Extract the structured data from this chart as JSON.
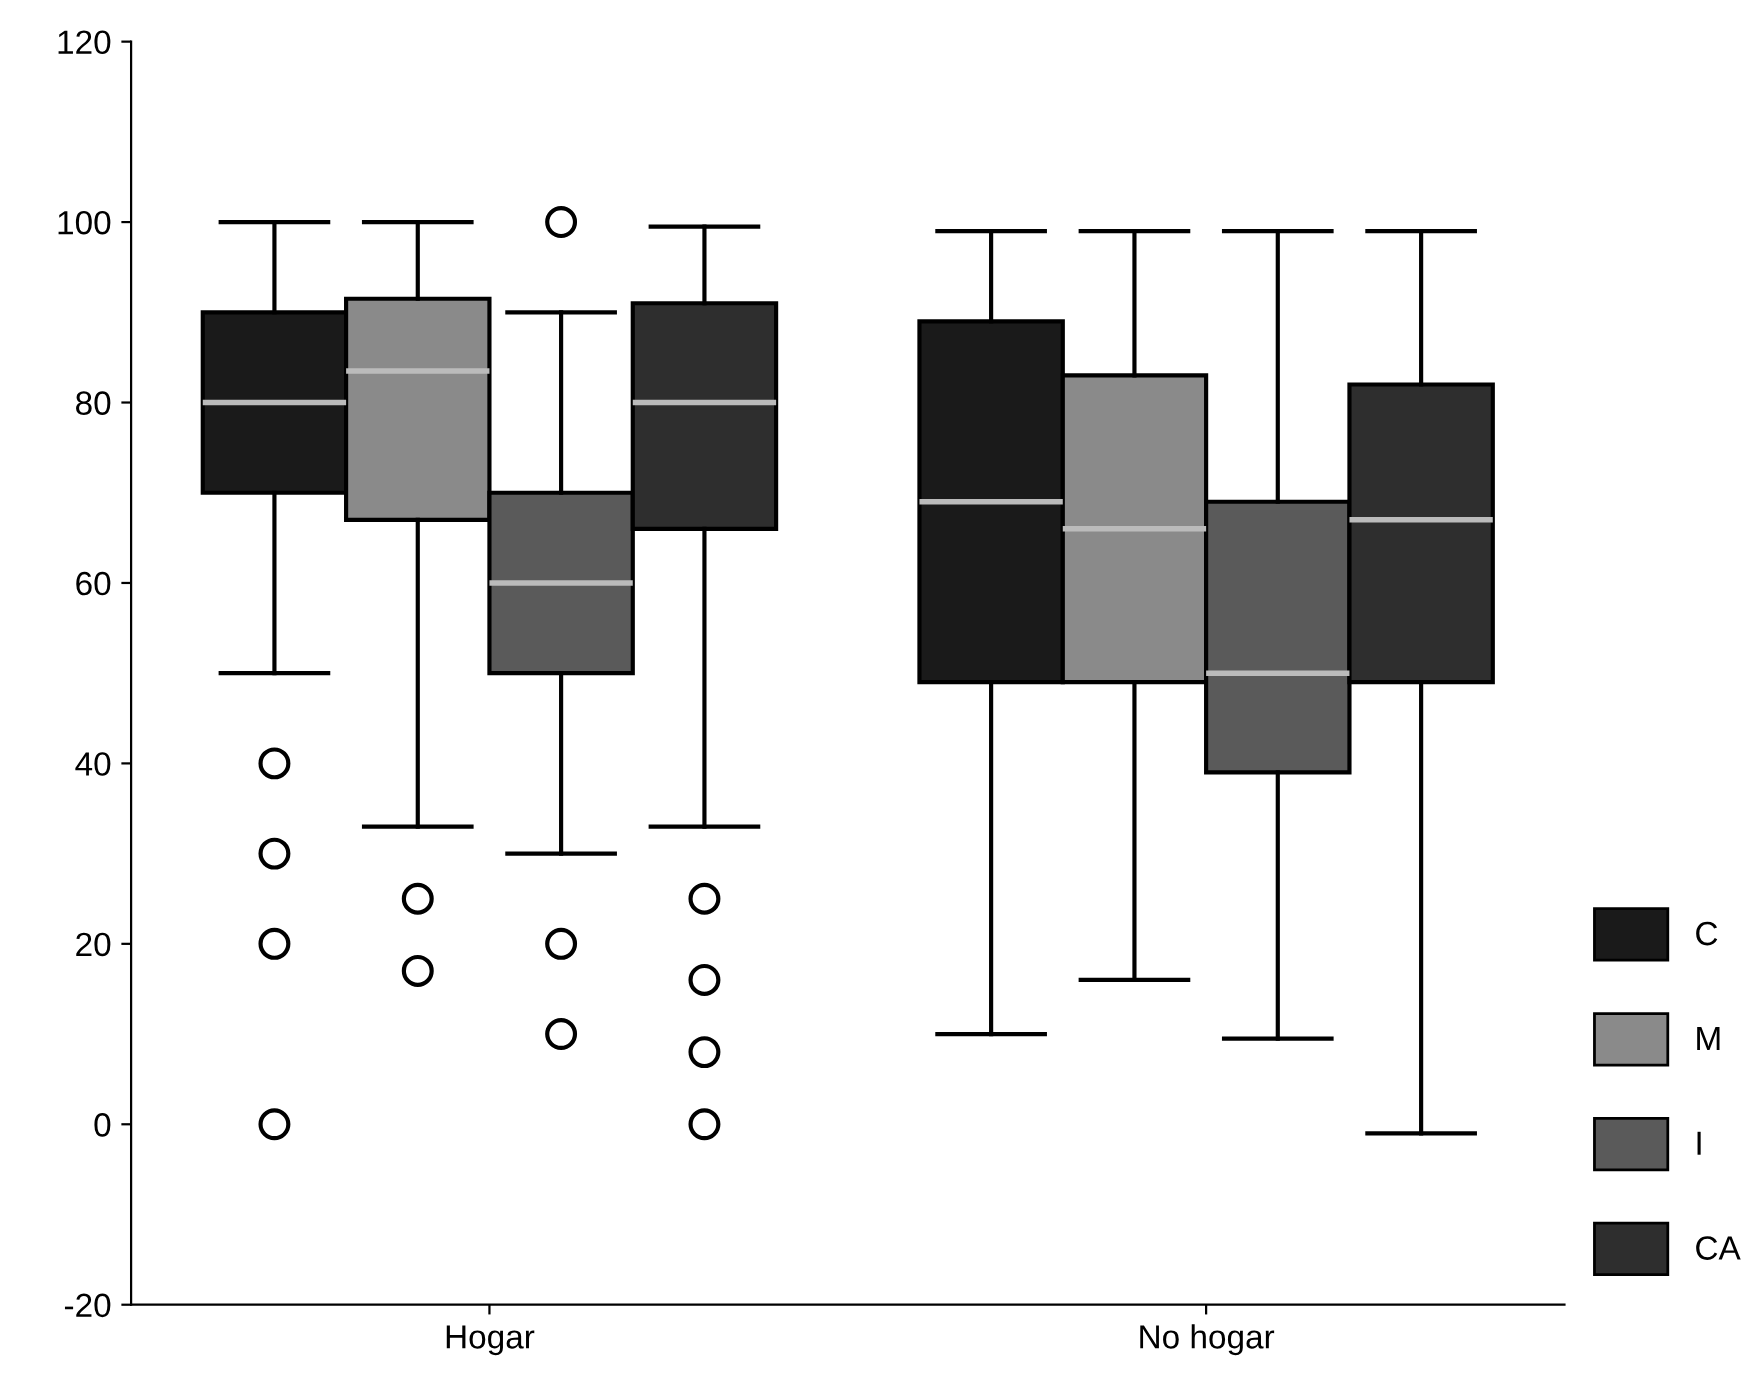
{
  "chart_data": {
    "type": "box",
    "categories": [
      "Hogar",
      "No hogar"
    ],
    "ylim": [
      -20,
      120
    ],
    "yticks": [
      -20,
      0,
      20,
      40,
      60,
      80,
      100,
      120
    ],
    "grid": false,
    "legend": "bottom right",
    "marker": "circle",
    "series": [
      {
        "name": "C",
        "color": "#1a1a1a",
        "boxes": [
          {
            "low": 50,
            "q1": 70,
            "median": 80,
            "q3": 90,
            "high": 100,
            "outliers": [
              40,
              30,
              20,
              0
            ]
          },
          {
            "low": 10,
            "q1": 49,
            "median": 69,
            "q3": 89,
            "high": 99
          }
        ]
      },
      {
        "name": "M",
        "color": "#8a8a8a",
        "boxes": [
          {
            "low": 33,
            "q1": 67,
            "median": 83.5,
            "q3": 91.5,
            "high": 100,
            "outliers": [
              25,
              17
            ]
          },
          {
            "low": 16,
            "q1": 49,
            "median": 66,
            "q3": 83,
            "high": 99
          }
        ]
      },
      {
        "name": "I",
        "color": "#5a5a5a",
        "boxes": [
          {
            "low": 30,
            "q1": 50,
            "median": 60,
            "q3": 70,
            "high": 90,
            "outliers": [
              100,
              20,
              10
            ]
          },
          {
            "low": 9.5,
            "q1": 39,
            "median": 50,
            "q3": 69,
            "high": 99
          }
        ]
      },
      {
        "name": "CA",
        "color": "#2e2e2e",
        "boxes": [
          {
            "low": 33,
            "q1": 66,
            "median": 80,
            "q3": 91,
            "high": 99.5,
            "outliers": [
              25,
              16,
              8,
              0
            ]
          },
          {
            "low": -1,
            "q1": 49,
            "median": 67,
            "q3": 82,
            "high": 99
          }
        ]
      }
    ]
  }
}
